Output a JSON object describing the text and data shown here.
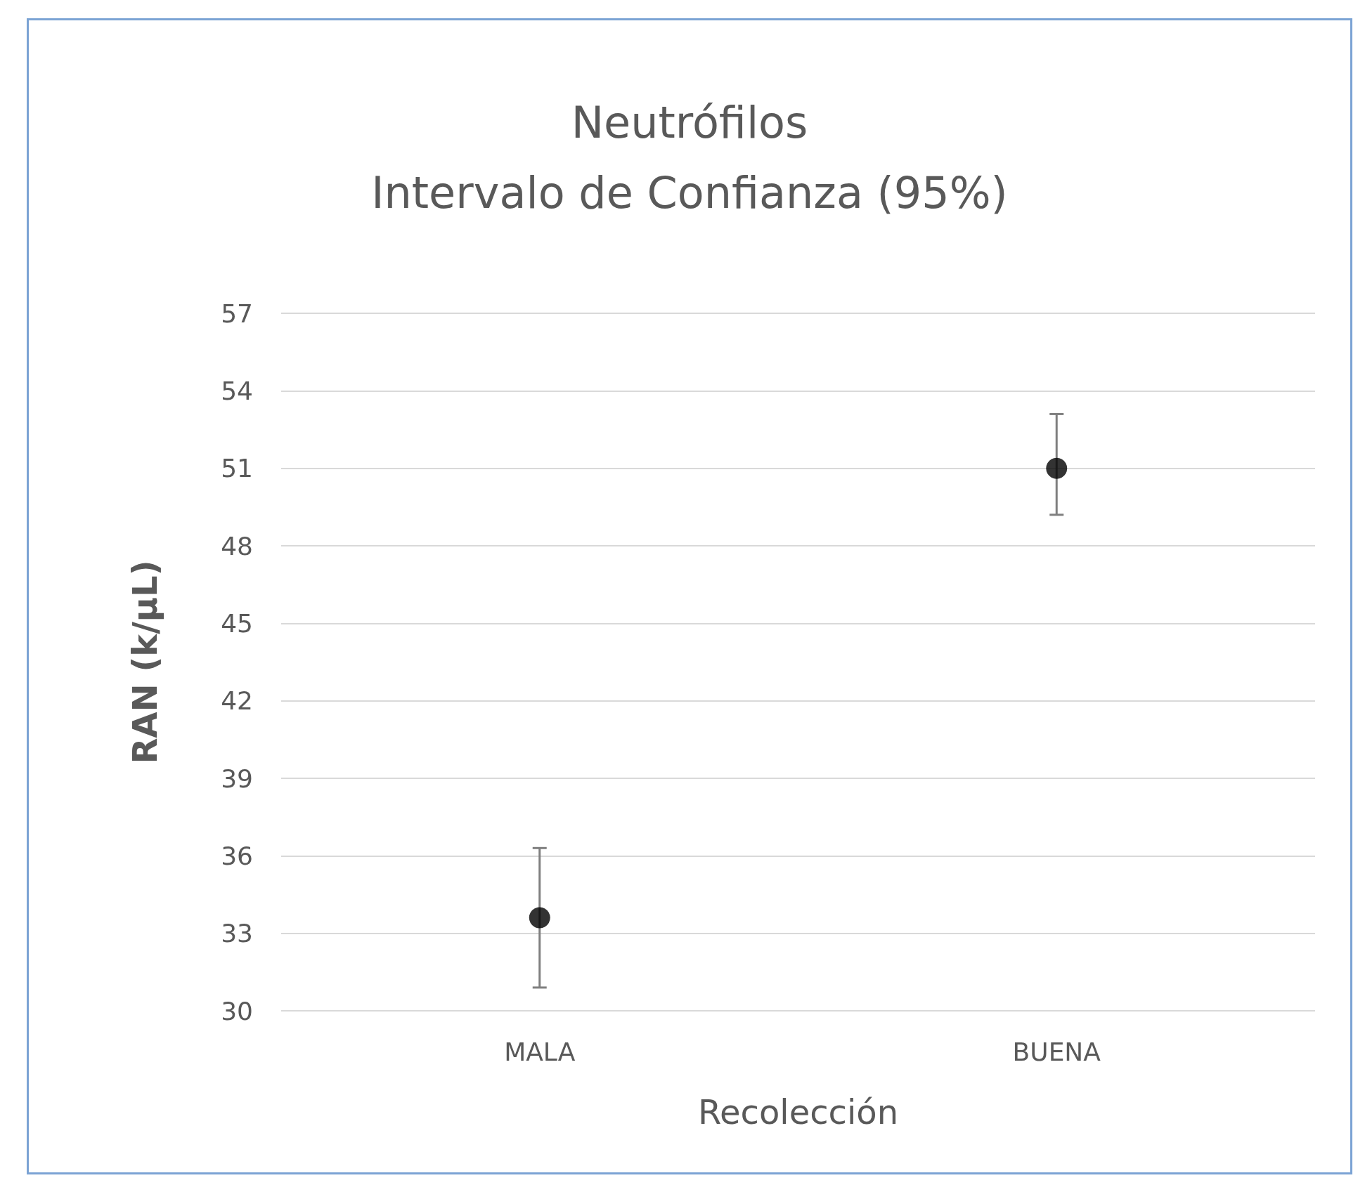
{
  "chart_data": {
    "type": "scatter",
    "title": "Neutrófilos\nIntervalo de Confianza (95%)",
    "xlabel": "Recolección",
    "ylabel": "RAN (k/µL)",
    "categories": [
      "MALA",
      "BUENA"
    ],
    "values": [
      33.6,
      51.0
    ],
    "errors": [
      [
        30.9,
        36.3
      ],
      [
        49.2,
        53.1
      ]
    ],
    "color": "#000000",
    "marker": "circle",
    "grid": "y",
    "ylim": [
      30,
      57
    ],
    "yticks": [
      30,
      33,
      36,
      39,
      42,
      45,
      48,
      51,
      54,
      57
    ]
  }
}
